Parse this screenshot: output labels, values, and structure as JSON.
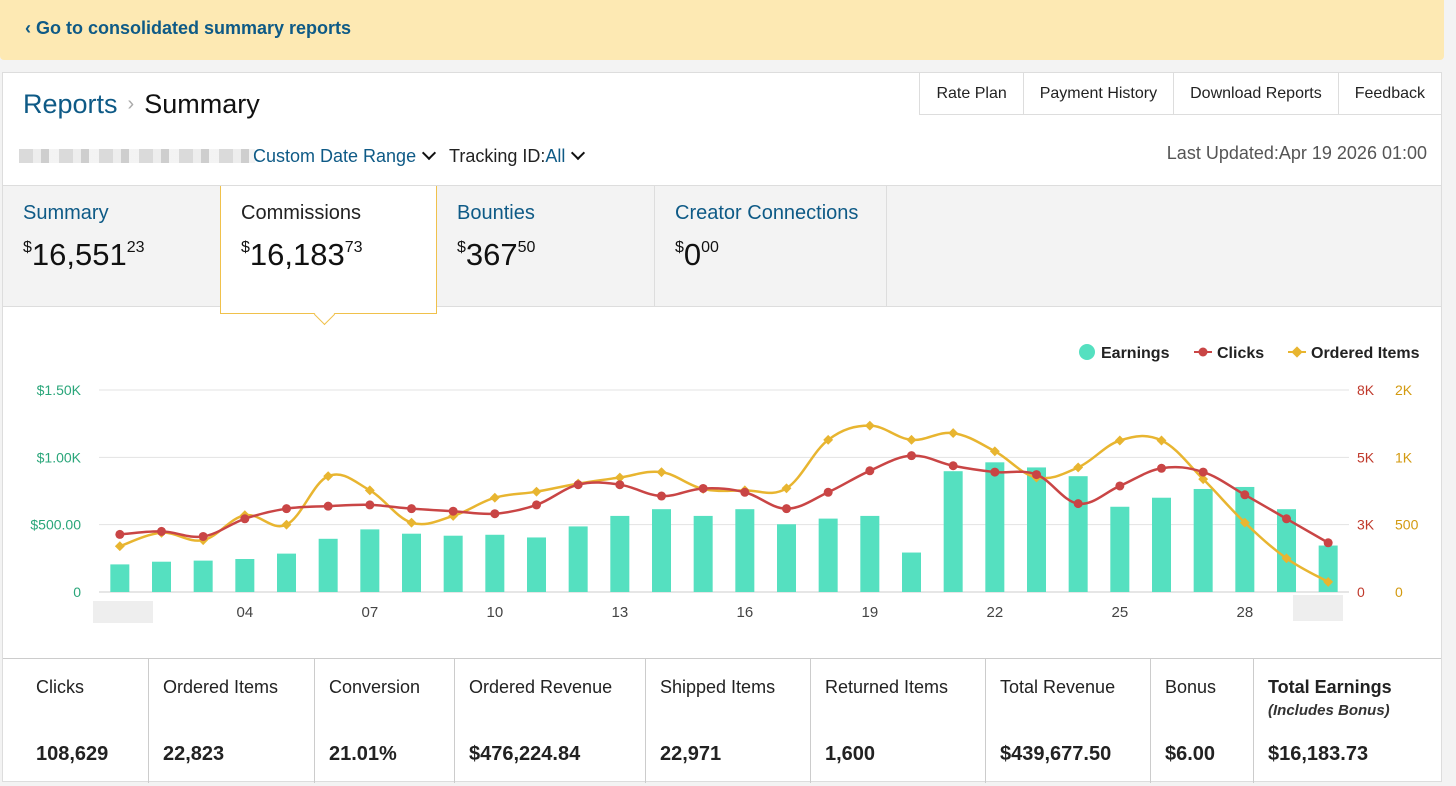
{
  "banner": {
    "link": "‹ Go to consolidated summary reports"
  },
  "breadcrumb": {
    "root": "Reports",
    "separator": "›",
    "current": "Summary"
  },
  "top_buttons": [
    "Rate Plan",
    "Payment History",
    "Download Reports",
    "Feedback"
  ],
  "filters": {
    "date_range": "Custom Date Range",
    "tracking_label": "Tracking ID:",
    "tracking_value": "All",
    "last_updated": "Last Updated:Apr 19 2026 01:00"
  },
  "tabs": [
    {
      "label": "Summary",
      "dollars": "16,551",
      "cents": "23",
      "active": false
    },
    {
      "label": "Commissions",
      "dollars": "16,183",
      "cents": "73",
      "active": true
    },
    {
      "label": "Bounties",
      "dollars": "367",
      "cents": "50",
      "active": false
    },
    {
      "label": "Creator Connections",
      "dollars": "0",
      "cents": "00",
      "active": false
    }
  ],
  "currency": "$",
  "chart_data": {
    "type": "bar",
    "legend": [
      "Earnings",
      "Clicks",
      "Ordered Items"
    ],
    "colors": {
      "earnings": "#55e0c0",
      "clicks": "#c94545",
      "ordered": "#e8b530",
      "left_axis": "#2aa67a",
      "right_axis_clicks": "#c0392b",
      "right_axis_items": "#d39a10"
    },
    "x_labels": [
      "04",
      "07",
      "10",
      "13",
      "16",
      "19",
      "22",
      "25",
      "28"
    ],
    "x_label_days": [
      4,
      7,
      10,
      13,
      16,
      19,
      22,
      25,
      28
    ],
    "days": [
      1,
      2,
      3,
      4,
      5,
      6,
      7,
      8,
      9,
      10,
      11,
      12,
      13,
      14,
      15,
      16,
      17,
      18,
      19,
      20,
      21,
      22,
      23,
      24,
      25,
      26,
      27,
      28,
      29,
      30
    ],
    "left_axis_ticks": [
      "0",
      "$500.00",
      "$1.00K",
      "$1.50K"
    ],
    "left_axis_values": [
      0,
      500,
      1000,
      1500
    ],
    "clicks_axis_ticks": [
      "0",
      "3K",
      "5K",
      "8K"
    ],
    "clicks_axis_values": [
      0,
      2666.7,
      5333.3,
      8000
    ],
    "items_axis_ticks": [
      "0",
      "500",
      "1K",
      "2K"
    ],
    "items_axis_values": [
      0,
      500,
      1000,
      1500
    ],
    "earnings": [
      205,
      225,
      233,
      245,
      285,
      395,
      465,
      433,
      418,
      425,
      405,
      487,
      565,
      615,
      565,
      615,
      503,
      545,
      565,
      293,
      897,
      963,
      925,
      860,
      633,
      700,
      765,
      780,
      615,
      345
    ],
    "clicks": [
      2280,
      2400,
      2200,
      2900,
      3300,
      3400,
      3450,
      3300,
      3200,
      3100,
      3450,
      4250,
      4250,
      3800,
      4100,
      3950,
      3300,
      3950,
      4800,
      5400,
      5000,
      4750,
      4650,
      3500,
      4200,
      4900,
      4750,
      3850,
      2900,
      1950
    ],
    "ordered_items": [
      340,
      440,
      385,
      570,
      500,
      860,
      755,
      515,
      565,
      700,
      745,
      805,
      850,
      890,
      765,
      755,
      770,
      1130,
      1235,
      1130,
      1180,
      1045,
      850,
      925,
      1125,
      1125,
      838,
      515,
      250,
      75
    ],
    "y_min": 0,
    "y_max": 1500
  },
  "stats": [
    {
      "label": "Clicks",
      "value": "108,629"
    },
    {
      "label": "Ordered Items",
      "value": "22,823"
    },
    {
      "label": "Conversion",
      "value": "21.01%"
    },
    {
      "label": "Ordered Revenue",
      "value": "$476,224.84"
    },
    {
      "label": "Shipped Items",
      "value": "22,971"
    },
    {
      "label": "Returned Items",
      "value": "1,600"
    },
    {
      "label": "Total Revenue",
      "value": "$439,677.50"
    },
    {
      "label": "Bonus",
      "value": "$6.00"
    },
    {
      "label": "Total Earnings",
      "sub": "(Includes Bonus)",
      "value": "$16,183.73"
    }
  ]
}
